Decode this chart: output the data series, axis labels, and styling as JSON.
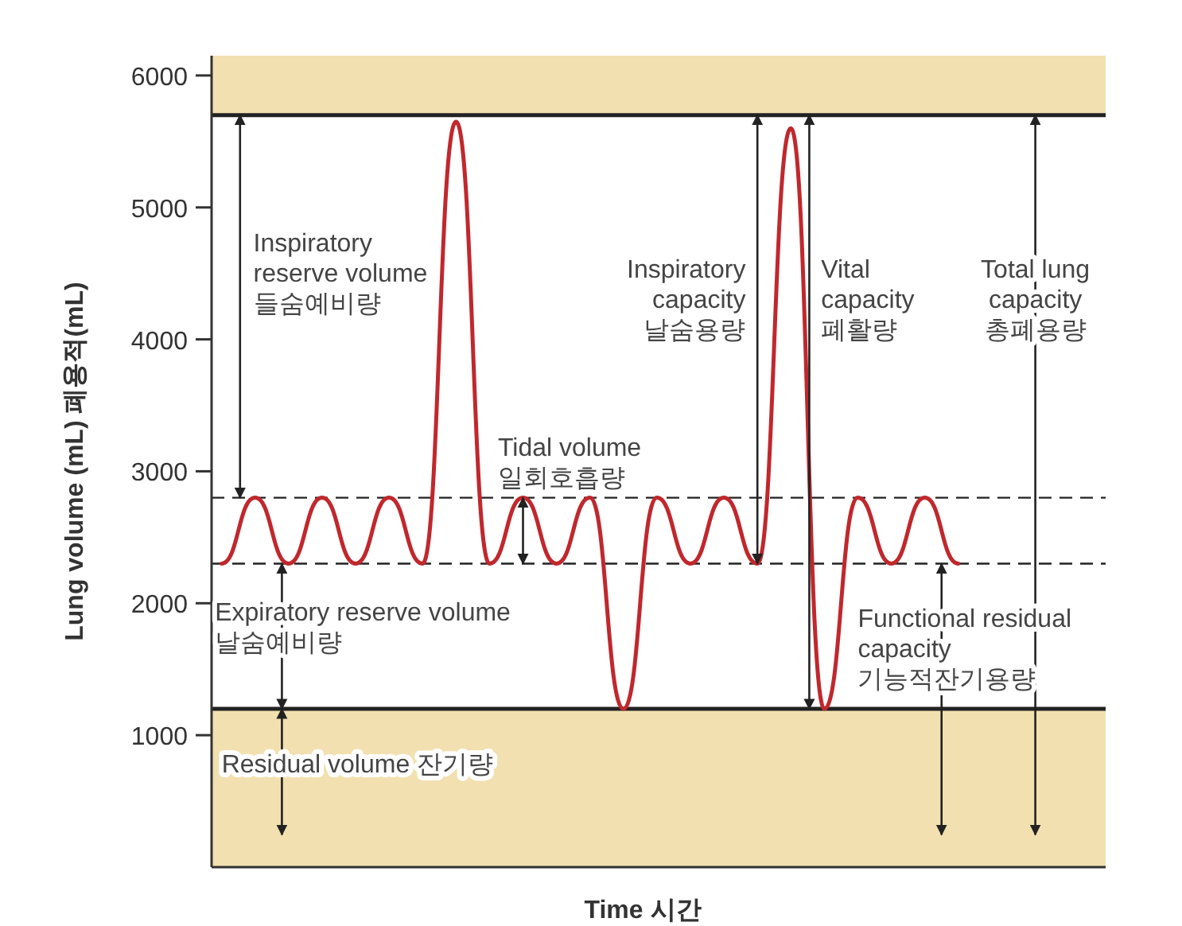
{
  "chart_data": {
    "type": "line",
    "xlabel": "Time 시간",
    "ylabel": "Lung volume (mL) 폐용적(mL)",
    "categories": [
      null,
      null,
      null,
      null,
      null,
      null,
      null,
      null,
      null,
      null,
      null,
      null,
      null,
      null,
      null,
      null,
      null,
      null,
      null,
      null,
      null,
      null,
      null
    ],
    "values": [
      2300,
      2800,
      2300,
      2800,
      2300,
      2800,
      2300,
      5650,
      2300,
      2800,
      2300,
      2800,
      1200,
      2800,
      2300,
      2800,
      2300,
      5600,
      1200,
      2800,
      2300,
      2800,
      2300
    ],
    "color": "#c0282d",
    "ylim": [
      0,
      6150
    ],
    "yticks": [
      1000,
      2000,
      3000,
      4000,
      5000,
      6000
    ],
    "ref_lines": [
      {
        "axis": "y",
        "value": 5700,
        "color": "#222222",
        "line_style": "solid"
      },
      {
        "axis": "y",
        "value": 2800,
        "color": "#222222",
        "line_style": "dashed"
      },
      {
        "axis": "y",
        "value": 2300,
        "color": "#222222",
        "line_style": "dashed"
      },
      {
        "axis": "y",
        "value": 1200,
        "color": "#222222",
        "line_style": "solid"
      }
    ],
    "bands": [
      {
        "axis": "y",
        "from": 0,
        "to": 1200,
        "color": "#f2e0b0"
      },
      {
        "axis": "y",
        "from": 5700,
        "to": 6150,
        "color": "#f2e0b0"
      }
    ],
    "annotations": [
      "Inspiratory reserve volume 들숨예비량",
      "Tidal volume 일회호흡량",
      "Inspiratory capacity 날숨용량",
      "Vital capacity 폐활량",
      "Total lung capacity 총폐용량",
      "Expiratory reserve volume 날숨예비량",
      "Functional residual capacity 기능적잔기용량",
      "Residual volume 잔기량"
    ]
  }
}
